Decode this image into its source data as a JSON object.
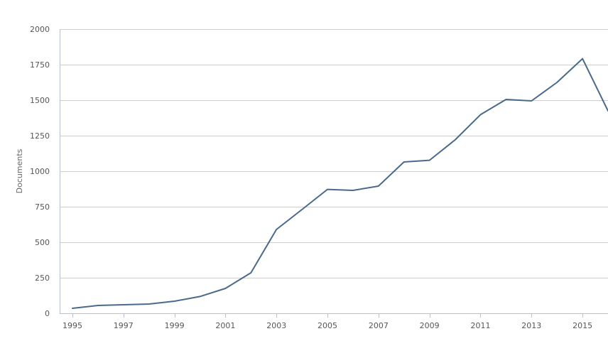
{
  "chart_data": {
    "type": "line",
    "title": "",
    "xlabel": "",
    "ylabel": "Documents",
    "x": [
      1995,
      1996,
      1997,
      1998,
      1999,
      2000,
      2001,
      2002,
      2003,
      2004,
      2005,
      2006,
      2007,
      2008,
      2009,
      2010,
      2011,
      2012,
      2013,
      2014,
      2015,
      2016
    ],
    "series": [
      {
        "values": [
          35,
          55,
          60,
          65,
          85,
          118,
          175,
          285,
          590,
          730,
          872,
          865,
          895,
          1065,
          1077,
          1220,
          1398,
          1505,
          1495,
          1625,
          1792,
          1425
        ],
        "color": "#4a6a8c"
      }
    ],
    "ylim": [
      0,
      2000
    ],
    "yticks": [
      0,
      250,
      500,
      750,
      1000,
      1250,
      1500,
      1750,
      2000
    ],
    "xticks": [
      1995,
      1997,
      1999,
      2001,
      2003,
      2005,
      2007,
      2009,
      2011,
      2013,
      2015
    ],
    "grid": true,
    "legend": "none"
  }
}
